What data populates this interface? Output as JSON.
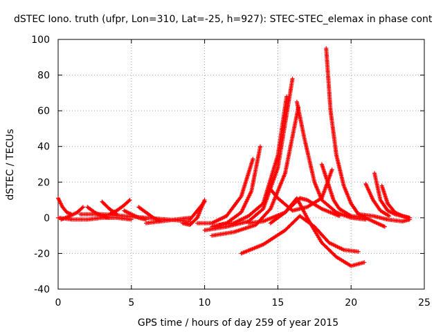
{
  "chart_data": {
    "type": "scatter",
    "title": "dSTEC Iono. truth (ufpr, Lon=310, Lat=-25, h=927): STEC-STEC_elemax in phase cont",
    "xlabel": "GPS time / hours of day 259 of year 2015",
    "ylabel": "dSTEC  / TECUs",
    "xlim": [
      0,
      25
    ],
    "ylim": [
      -40,
      100
    ],
    "xticks": [
      0,
      5,
      10,
      15,
      20,
      25
    ],
    "yticks": [
      -40,
      -20,
      0,
      20,
      40,
      60,
      80,
      100
    ],
    "grid": true,
    "marker": "+",
    "color": "#ff0000",
    "series": [
      {
        "x": [
          0.0,
          0.3,
          0.6,
          0.9
        ],
        "y": [
          11,
          6,
          3,
          2
        ]
      },
      {
        "x": [
          0.2,
          0.8,
          1.3,
          1.7
        ],
        "y": [
          -1,
          1,
          3,
          6
        ]
      },
      {
        "x": [
          0.0,
          1.0,
          2.0,
          3.0,
          4.0,
          5.0
        ],
        "y": [
          0,
          -1,
          -1,
          0,
          0,
          -1
        ]
      },
      {
        "x": [
          2.0,
          2.5,
          3.0,
          3.5
        ],
        "y": [
          6,
          3,
          1,
          0
        ]
      },
      {
        "x": [
          3.0,
          3.5,
          4.0
        ],
        "y": [
          9,
          5,
          2
        ]
      },
      {
        "x": [
          3.5,
          4.0,
          4.5,
          4.9
        ],
        "y": [
          2,
          4,
          7,
          10
        ]
      },
      {
        "x": [
          4.5,
          5.0,
          5.5,
          6.0
        ],
        "y": [
          4,
          2,
          0,
          -1
        ]
      },
      {
        "x": [
          1.5,
          3.0,
          4.5,
          6.0,
          7.5,
          9.0
        ],
        "y": [
          2,
          2,
          1,
          0,
          -1,
          -2
        ]
      },
      {
        "x": [
          5.5,
          6.0,
          6.5,
          7.0
        ],
        "y": [
          6,
          3,
          0,
          -2
        ]
      },
      {
        "x": [
          6.0,
          7.0,
          8.0,
          9.0
        ],
        "y": [
          -3,
          -2,
          -1,
          0
        ]
      },
      {
        "x": [
          8.5,
          9.0,
          9.5,
          10.0
        ],
        "y": [
          -3,
          -4,
          0,
          10
        ]
      },
      {
        "x": [
          9.0,
          9.5,
          10.0
        ],
        "y": [
          -1,
          4,
          9
        ]
      },
      {
        "x": [
          9.5,
          10.5,
          11.5,
          12.5,
          13.3
        ],
        "y": [
          -3,
          -3,
          1,
          12,
          33
        ]
      },
      {
        "x": [
          10.5,
          11.5,
          12.5,
          13.2,
          13.8
        ],
        "y": [
          -5,
          -3,
          3,
          15,
          40
        ]
      },
      {
        "x": [
          11.0,
          12.0,
          13.0,
          14.0,
          15.0,
          15.6
        ],
        "y": [
          -4,
          -3,
          1,
          8,
          35,
          68
        ]
      },
      {
        "x": [
          10.0,
          11.5,
          13.0,
          14.0,
          15.0,
          16.0
        ],
        "y": [
          -7,
          -5,
          -2,
          5,
          28,
          78
        ]
      },
      {
        "x": [
          10.5,
          12.0,
          13.5,
          14.5,
          15.5,
          16.4
        ],
        "y": [
          -10,
          -8,
          -4,
          5,
          25,
          62
        ]
      },
      {
        "x": [
          14.5,
          15.0,
          16.0,
          17.0,
          18.0,
          18.7
        ],
        "y": [
          16,
          11,
          4,
          6,
          11,
          27
        ]
      },
      {
        "x": [
          13.0,
          14.0,
          15.5,
          16.5,
          17.0,
          18.0,
          19.2
        ],
        "y": [
          -3,
          -2,
          3,
          11,
          10,
          5,
          1
        ]
      },
      {
        "x": [
          12.5,
          14.0,
          15.5,
          16.5,
          17.5,
          18.5,
          19.5,
          20.5
        ],
        "y": [
          -20,
          -15,
          -7,
          1,
          -5,
          -14,
          -18,
          -19
        ]
      },
      {
        "x": [
          14.5,
          15.5,
          16.3,
          17.0,
          18.0,
          19.0,
          20.0,
          20.9
        ],
        "y": [
          -3,
          3,
          11,
          0,
          -14,
          -22,
          -27,
          -25
        ]
      },
      {
        "x": [
          16.3,
          16.8,
          17.5,
          18.0,
          19.0,
          20.0,
          21.0
        ],
        "y": [
          65,
          45,
          20,
          10,
          3,
          0,
          -1
        ]
      },
      {
        "x": [
          18.0,
          18.4,
          18.8,
          19.2,
          20.0,
          21.0
        ],
        "y": [
          30,
          20,
          10,
          5,
          1,
          0
        ]
      },
      {
        "x": [
          18.3,
          18.6,
          19.0,
          19.5,
          20.0,
          20.5,
          21.5,
          22.3
        ],
        "y": [
          95,
          60,
          35,
          18,
          8,
          2,
          -2,
          -5
        ]
      },
      {
        "x": [
          21.0,
          21.5,
          22.0,
          22.6
        ],
        "y": [
          19,
          10,
          4,
          1
        ]
      },
      {
        "x": [
          21.6,
          22.0,
          22.5,
          23.0,
          23.5,
          24.0
        ],
        "y": [
          25,
          10,
          4,
          2,
          1,
          0
        ]
      },
      {
        "x": [
          22.1,
          22.5,
          23.0,
          23.5,
          24.0
        ],
        "y": [
          18,
          8,
          3,
          1,
          0
        ]
      },
      {
        "x": [
          20.5,
          21.5,
          22.5,
          23.5,
          24.0
        ],
        "y": [
          2,
          1,
          -1,
          -2,
          -1
        ]
      }
    ]
  }
}
